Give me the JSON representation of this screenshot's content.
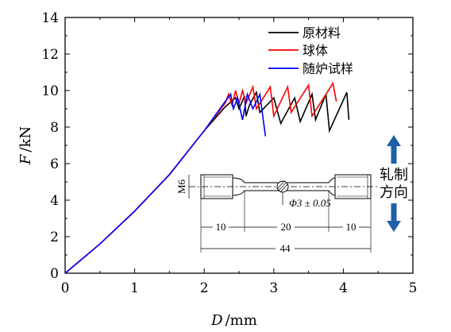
{
  "chart_data": {
    "type": "line",
    "xlabel": {
      "var": "D",
      "unit": "/mm"
    },
    "ylabel": {
      "var": "F",
      "unit": "/kN"
    },
    "xlim": [
      0,
      5
    ],
    "ylim": [
      0,
      14
    ],
    "xticks": [
      "0",
      "1",
      "2",
      "3",
      "4",
      "5"
    ],
    "yticks": [
      "0",
      "2",
      "4",
      "6",
      "8",
      "10",
      "12",
      "14"
    ],
    "grid": false,
    "legend_position": "top-right",
    "series": [
      {
        "name": "原材料",
        "color": "#000000",
        "points": [
          [
            0,
            0
          ],
          [
            0.5,
            1.6
          ],
          [
            1,
            3.4
          ],
          [
            1.5,
            5.4
          ],
          [
            2,
            7.8
          ],
          [
            2.3,
            9.1
          ],
          [
            2.45,
            9.6
          ],
          [
            2.5,
            9.0
          ],
          [
            2.58,
            9.7
          ],
          [
            2.6,
            8.6
          ],
          [
            2.65,
            9.2
          ],
          [
            2.75,
            9.9
          ],
          [
            2.8,
            8.8
          ],
          [
            3.0,
            9.6
          ],
          [
            3.1,
            8.2
          ],
          [
            3.3,
            9.6
          ],
          [
            3.38,
            8.3
          ],
          [
            3.55,
            9.8
          ],
          [
            3.6,
            8.4
          ],
          [
            3.75,
            9.8
          ],
          [
            3.8,
            7.8
          ],
          [
            4.05,
            9.9
          ],
          [
            4.08,
            8.4
          ]
        ]
      },
      {
        "name": "球体",
        "color": "#ff0000",
        "points": [
          [
            0,
            0
          ],
          [
            0.5,
            1.6
          ],
          [
            1,
            3.4
          ],
          [
            1.5,
            5.4
          ],
          [
            2,
            7.8
          ],
          [
            2.3,
            9.3
          ],
          [
            2.35,
            9.8
          ],
          [
            2.4,
            9.2
          ],
          [
            2.45,
            10.0
          ],
          [
            2.5,
            9.3
          ],
          [
            2.55,
            10.0
          ],
          [
            2.6,
            9.3
          ],
          [
            2.7,
            10.2
          ],
          [
            2.75,
            9.0
          ],
          [
            2.95,
            10.2
          ],
          [
            3.0,
            8.6
          ],
          [
            3.2,
            10.2
          ],
          [
            3.25,
            8.8
          ],
          [
            3.5,
            10.3
          ],
          [
            3.55,
            8.6
          ],
          [
            3.85,
            10.4
          ],
          [
            3.9,
            9.4
          ]
        ]
      },
      {
        "name": "随炉试样",
        "color": "#0000ff",
        "points": [
          [
            0,
            0
          ],
          [
            0.5,
            1.6
          ],
          [
            1,
            3.4
          ],
          [
            1.5,
            5.4
          ],
          [
            2,
            7.8
          ],
          [
            2.3,
            9.4
          ],
          [
            2.38,
            9.8
          ],
          [
            2.42,
            9.0
          ],
          [
            2.48,
            9.6
          ],
          [
            2.55,
            8.4
          ],
          [
            2.62,
            9.8
          ],
          [
            2.7,
            9.0
          ],
          [
            2.8,
            9.8
          ],
          [
            2.88,
            7.5
          ]
        ]
      }
    ]
  },
  "diagram": {
    "m6": "M6",
    "diameter": "Φ3 ± 0.05",
    "dim_10_left": "10",
    "dim_20": "20",
    "dim_10_right": "10",
    "dim_44": "44",
    "direction_line1": "轧制",
    "direction_line2": "方向",
    "arrow_color": "#1f5fa8"
  }
}
